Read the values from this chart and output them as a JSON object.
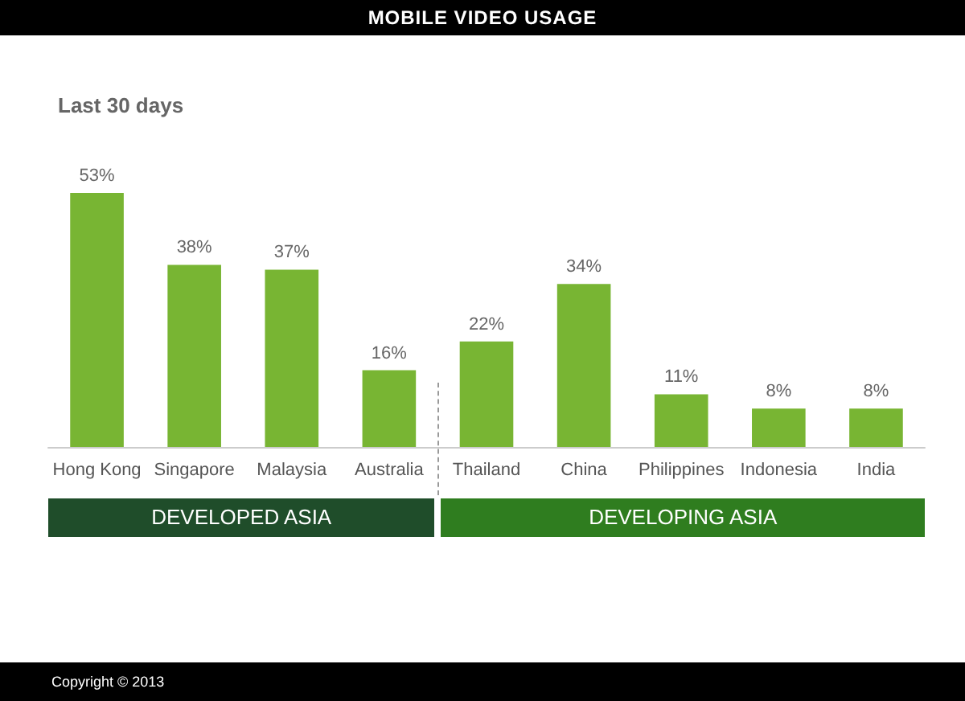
{
  "chart_data": {
    "type": "bar",
    "title": "MOBILE VIDEO USAGE",
    "subtitle": "Last 30 days",
    "categories": [
      "Hong Kong",
      "Singapore",
      "Malaysia",
      "Australia",
      "Thailand",
      "China",
      "Philippines",
      "Indonesia",
      "India"
    ],
    "values": [
      53,
      38,
      37,
      16,
      22,
      34,
      11,
      8,
      8
    ],
    "color": "#78b533",
    "value_labels": [
      "53%",
      "38%",
      "37%",
      "16%",
      "22%",
      "34%",
      "11%",
      "8%",
      "8%"
    ],
    "annotations": [
      "DEVELOPED ASIA",
      "DEVELOPING ASIA",
      "Copyright © 2013"
    ]
  }
}
